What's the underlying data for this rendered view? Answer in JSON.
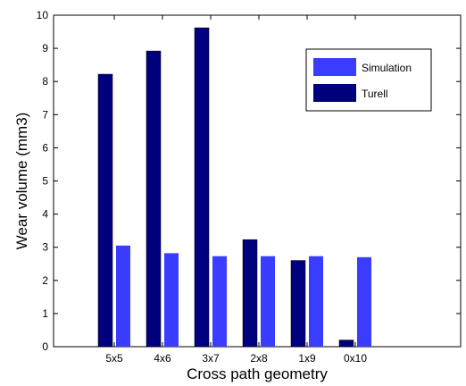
{
  "chart_data": {
    "type": "bar",
    "title": "",
    "xlabel": "Cross path geometry",
    "ylabel": "Wear volume (mm3)",
    "categories": [
      "5x5",
      "4x6",
      "3x7",
      "2x8",
      "1x9",
      "0x10"
    ],
    "ylim": [
      0,
      10
    ],
    "yticks": [
      0,
      1,
      2,
      3,
      4,
      5,
      6,
      7,
      8,
      9,
      10
    ],
    "grid": false,
    "legend_position": "top-right",
    "series": [
      {
        "name": "Simulation",
        "color": "#3a3cff",
        "values": [
          3.05,
          2.82,
          2.73,
          2.73,
          2.73,
          2.7
        ]
      },
      {
        "name": "Turell",
        "color": "#00007f",
        "values": [
          8.22,
          8.92,
          9.62,
          3.23,
          2.6,
          0.2
        ]
      }
    ]
  }
}
